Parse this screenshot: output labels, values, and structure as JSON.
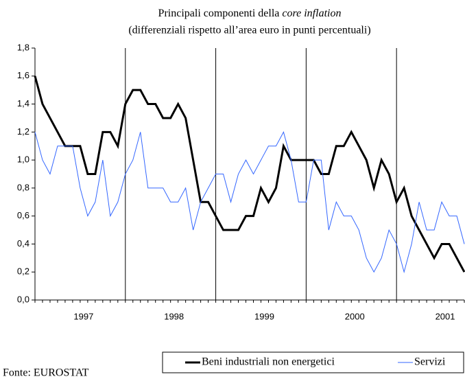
{
  "chart_data": {
    "type": "line",
    "title": {
      "text": "Principali componenti della",
      "italic": "core inflation"
    },
    "subtitle": "(differenziali rispetto all’area euro in punti percentuali)",
    "source": "Fonte: EUROSTAT",
    "categories": [
      null,
      null,
      null,
      null,
      null,
      null,
      "1997",
      null,
      null,
      null,
      null,
      null,
      null,
      null,
      null,
      null,
      null,
      null,
      "1998",
      null,
      null,
      null,
      null,
      null,
      null,
      null,
      null,
      null,
      null,
      null,
      "1999",
      null,
      null,
      null,
      null,
      null,
      null,
      null,
      null,
      null,
      null,
      null,
      "2000",
      null,
      null,
      null,
      null,
      null,
      null,
      null,
      null,
      null,
      null,
      null,
      "2001",
      null,
      null,
      null
    ],
    "series": [
      {
        "name": "Beni industriali non energetici",
        "color": "#000000",
        "values": [
          1.6,
          1.4,
          1.3,
          1.2,
          1.1,
          1.1,
          1.1,
          0.9,
          0.9,
          1.2,
          1.2,
          1.1,
          1.4,
          1.5,
          1.5,
          1.4,
          1.4,
          1.3,
          1.3,
          1.4,
          1.3,
          1.0,
          0.7,
          0.7,
          0.6,
          0.5,
          0.5,
          0.5,
          0.6,
          0.6,
          0.8,
          0.7,
          0.8,
          1.1,
          1.0,
          1.0,
          1.0,
          1.0,
          0.9,
          0.9,
          1.1,
          1.1,
          1.2,
          1.1,
          1.0,
          0.8,
          1.0,
          0.9,
          0.7,
          0.8,
          0.6,
          0.5,
          0.4,
          0.3,
          0.4,
          0.4,
          0.3,
          0.2
        ]
      },
      {
        "name": "Servizi",
        "color": "#3366ff",
        "values": [
          1.2,
          1.0,
          0.9,
          1.1,
          1.1,
          1.1,
          0.8,
          0.6,
          0.7,
          1.0,
          0.6,
          0.7,
          0.9,
          1.0,
          1.2,
          0.8,
          0.8,
          0.8,
          0.7,
          0.7,
          0.8,
          0.5,
          0.7,
          0.8,
          0.9,
          0.9,
          0.7,
          0.9,
          1.0,
          0.9,
          1.0,
          1.1,
          1.1,
          1.2,
          1.0,
          0.7,
          0.7,
          1.0,
          1.0,
          0.5,
          0.7,
          0.6,
          0.6,
          0.5,
          0.3,
          0.2,
          0.3,
          0.5,
          0.4,
          0.2,
          0.4,
          0.7,
          0.5,
          0.5,
          0.7,
          0.6,
          0.6,
          0.4
        ]
      }
    ],
    "ylim": [
      0,
      1.8
    ],
    "yticks": [
      {
        "value": 0,
        "label": "0,0"
      },
      {
        "value": 0.2,
        "label": "0,2"
      },
      {
        "value": 0.4,
        "label": "0,4"
      },
      {
        "value": 0.6,
        "label": "0,6"
      },
      {
        "value": 0.8,
        "label": "0,8"
      },
      {
        "value": 1.0,
        "label": "1,0"
      },
      {
        "value": 1.2,
        "label": "1,2"
      },
      {
        "value": 1.4,
        "label": "1,4"
      },
      {
        "value": 1.6,
        "label": "1,6"
      },
      {
        "value": 1.8,
        "label": "1,8"
      }
    ],
    "grid": false,
    "legend": "bottom-right"
  }
}
